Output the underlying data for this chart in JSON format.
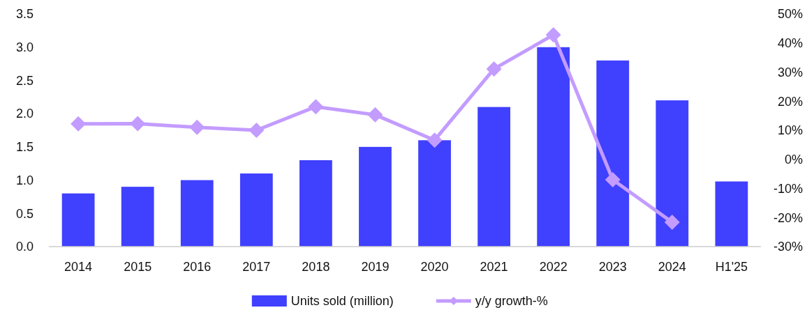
{
  "chart_data": {
    "type": "bar",
    "categories": [
      "2014",
      "2015",
      "2016",
      "2017",
      "2018",
      "2019",
      "2020",
      "2021",
      "2022",
      "2023",
      "2024",
      "H1'25"
    ],
    "series": [
      {
        "name": "Units sold (million)",
        "color": "#4040ff",
        "values": [
          0.8,
          0.9,
          1.0,
          1.1,
          1.3,
          1.5,
          1.6,
          2.1,
          3.0,
          2.8,
          2.2,
          0.98
        ]
      },
      {
        "name": "y/y growth-%",
        "type": "line",
        "axis": "y2",
        "color": "#c39cff",
        "marker": "diamond",
        "values": [
          12.2,
          12.3,
          11.0,
          10.0,
          18.1,
          15.3,
          6.6,
          31.1,
          42.8,
          -7.0,
          -21.6,
          null
        ]
      }
    ],
    "ylim": [
      0,
      3.5
    ],
    "yticks": [
      {
        "value": 0,
        "label": "0.0"
      },
      0.5,
      {
        "value": 1,
        "label": "1.0"
      },
      1.5,
      {
        "value": 2,
        "label": "2.0"
      },
      2.5,
      {
        "value": 3,
        "label": "3.0"
      },
      3.5
    ],
    "y2lim": [
      -30,
      50
    ],
    "y2ticks": [
      {
        "value": -30,
        "label": "-30%"
      },
      {
        "value": -20,
        "label": "-20%"
      },
      {
        "value": -10,
        "label": "-10%"
      },
      {
        "value": 0,
        "label": "0%"
      },
      {
        "value": 10,
        "label": "10%"
      },
      {
        "value": 20,
        "label": "20%"
      },
      {
        "value": 30,
        "label": "30%"
      },
      {
        "value": 40,
        "label": "40%"
      },
      {
        "value": 50,
        "label": "50%"
      }
    ],
    "grid": false,
    "legend": "bottom"
  }
}
